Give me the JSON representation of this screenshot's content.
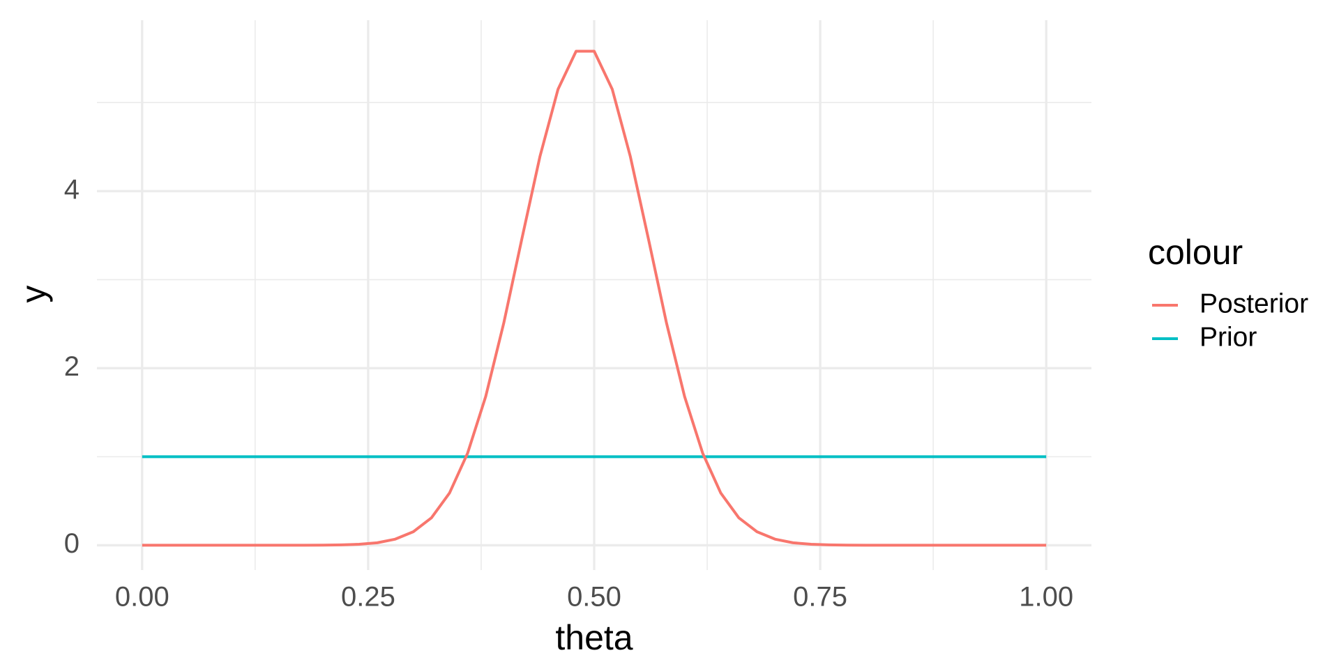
{
  "chart_data": {
    "type": "line",
    "x_label": "theta",
    "y_label": "y",
    "legend_title": "colour",
    "legend": "right",
    "xlim": [
      -0.05,
      1.05
    ],
    "ylim": [
      -0.28,
      5.93
    ],
    "xticks": [
      {
        "value": 0,
        "label": "0.00"
      },
      {
        "value": 0.25,
        "label": "0.25"
      },
      {
        "value": 0.5,
        "label": "0.50"
      },
      {
        "value": 0.75,
        "label": "0.75"
      },
      {
        "value": 1,
        "label": "1.00"
      }
    ],
    "x_minor_ticks": [
      0.125,
      0.375,
      0.625,
      0.875
    ],
    "yticks": [
      0,
      2,
      4
    ],
    "y_minor_ticks": [
      1,
      3,
      5
    ],
    "grid": true,
    "series": [
      {
        "name": "Posterior",
        "color": "#F8766D",
        "x": [
          0,
          0.02,
          0.04,
          0.06,
          0.08,
          0.1,
          0.12,
          0.14,
          0.16,
          0.18,
          0.2,
          0.22,
          0.24,
          0.26,
          0.28,
          0.3,
          0.32,
          0.34,
          0.36,
          0.38,
          0.4,
          0.42,
          0.44,
          0.46,
          0.48,
          0.5,
          0.52,
          0.54,
          0.56,
          0.58,
          0.6,
          0.62,
          0.64,
          0.66,
          0.68,
          0.7,
          0.72,
          0.74,
          0.76,
          0.78,
          0.8,
          0.82,
          0.84,
          0.86,
          0.88,
          0.9,
          0.92,
          0.94,
          0.96,
          0.98,
          1
        ],
        "values": [
          0,
          0,
          0,
          0,
          0,
          0,
          0,
          0,
          0,
          0,
          0.0013,
          0.0039,
          0.011,
          0.028,
          0.069,
          0.153,
          0.31,
          0.59,
          1.04,
          1.68,
          2.51,
          3.46,
          4.39,
          5.15,
          5.58,
          5.58,
          5.15,
          4.39,
          3.46,
          2.51,
          1.68,
          1.04,
          0.59,
          0.31,
          0.153,
          0.069,
          0.028,
          0.011,
          0.0039,
          0.0013,
          0,
          0,
          0,
          0,
          0,
          0,
          0,
          0,
          0,
          0,
          0
        ]
      },
      {
        "name": "Prior",
        "color": "#00BFC4",
        "x": [
          0,
          1
        ],
        "values": [
          1,
          1
        ]
      }
    ]
  }
}
